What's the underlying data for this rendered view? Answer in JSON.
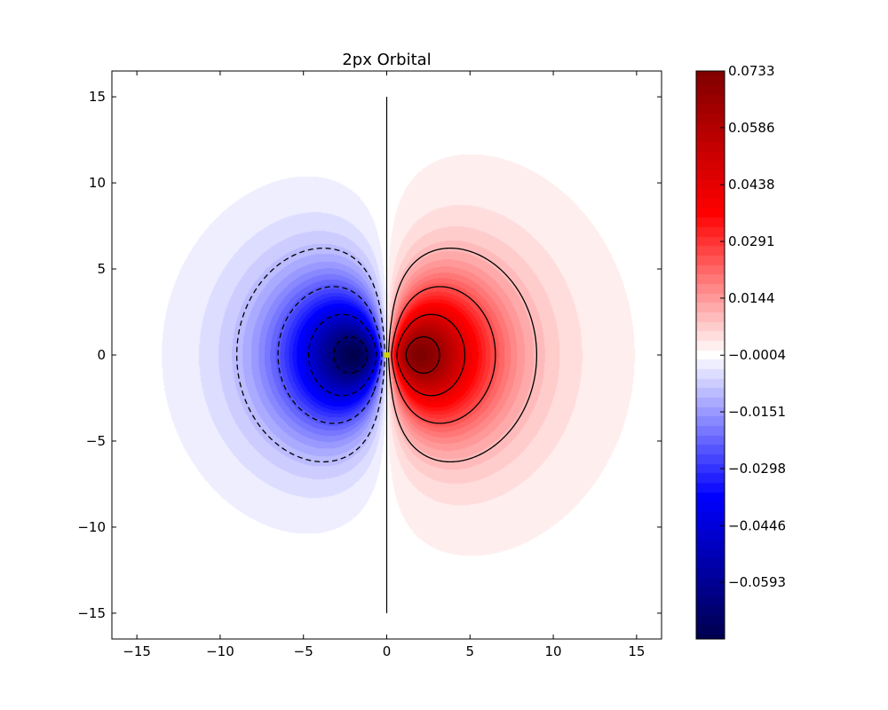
{
  "chart_data": {
    "type": "heatmap",
    "subtype": "filled-contour",
    "title": "2px Orbital",
    "xlabel": "",
    "ylabel": "",
    "xlim": [
      -16.5,
      16.5
    ],
    "ylim": [
      -16.5,
      16.5
    ],
    "data_extent": {
      "x": [
        -15,
        15
      ],
      "y": [
        -15,
        15
      ]
    },
    "xticks": [
      -15,
      -10,
      -5,
      0,
      5,
      10,
      15
    ],
    "yticks": [
      -15,
      -10,
      -5,
      0,
      5,
      10,
      15
    ],
    "xtick_labels": [
      "−15",
      "−10",
      "−5",
      "0",
      "5",
      "10",
      "15"
    ],
    "ytick_labels": [
      "−15",
      "−10",
      "−5",
      "0",
      "5",
      "10",
      "15"
    ],
    "grid": false,
    "colormap": "seismic",
    "colormap_colors": [
      "#00004c",
      "#0000ff",
      "#ffffff",
      "#ff0000",
      "#800000"
    ],
    "colorbar": {
      "vmin": -0.074,
      "vmax": 0.0733,
      "ticks": [
        0.0733,
        0.0586,
        0.0438,
        0.0291,
        0.0144,
        -0.0004,
        -0.0151,
        -0.0298,
        -0.0446,
        -0.0593
      ],
      "tick_labels": [
        "0.0733",
        "0.0586",
        "0.0438",
        "0.0291",
        "0.0144",
        "−0.0004",
        "−0.0151",
        "−0.0298",
        "−0.0446",
        "−0.0593"
      ]
    },
    "function": "psi = x * exp(-r/2), r = sqrt(x^2 + y^2), scaled to peak 0.0733",
    "peak_positions": [
      {
        "x": 2.2,
        "y": 0,
        "value": 0.0733
      },
      {
        "x": -2.2,
        "y": 0,
        "value": -0.0733
      }
    ],
    "contour_levels": [
      0.01,
      0.025,
      0.045,
      0.065
    ],
    "contour_style": {
      "positive": "solid",
      "negative": "dashed",
      "color": "#000000"
    },
    "nodal_line": {
      "x": 0,
      "y_range": [
        -15,
        15
      ]
    },
    "origin_marker": {
      "x": 0,
      "y": 0,
      "color": "#c8d400"
    }
  }
}
